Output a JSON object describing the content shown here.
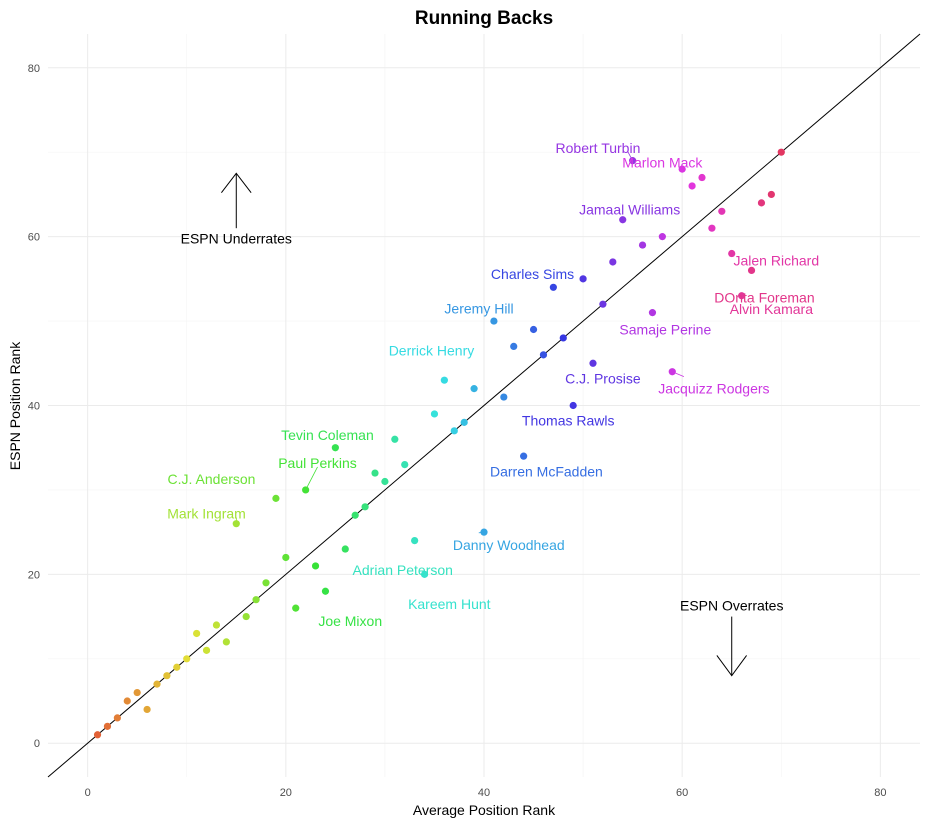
{
  "chart_data": {
    "type": "scatter",
    "title": "Running Backs",
    "xlabel": "Average Position Rank",
    "ylabel": "ESPN Position Rank",
    "xlim": [
      -4,
      84
    ],
    "ylim": [
      -4,
      84
    ],
    "x_ticks": [
      0,
      20,
      40,
      60,
      80
    ],
    "y_ticks": [
      0,
      20,
      40,
      60,
      80
    ],
    "grid": true,
    "legend": "none",
    "reference_line": {
      "slope": 1,
      "intercept": 0
    },
    "color_scale": {
      "by": "x",
      "start_hue": 15,
      "end_hue": 345
    },
    "points": [
      {
        "x": 1,
        "y": 1
      },
      {
        "x": 2,
        "y": 2
      },
      {
        "x": 3,
        "y": 3
      },
      {
        "x": 4,
        "y": 5
      },
      {
        "x": 5,
        "y": 6
      },
      {
        "x": 6,
        "y": 4
      },
      {
        "x": 7,
        "y": 7
      },
      {
        "x": 8,
        "y": 8
      },
      {
        "x": 9,
        "y": 9
      },
      {
        "x": 10,
        "y": 10
      },
      {
        "x": 11,
        "y": 13
      },
      {
        "x": 12,
        "y": 11
      },
      {
        "x": 13,
        "y": 14
      },
      {
        "x": 14,
        "y": 12
      },
      {
        "x": 15,
        "y": 26,
        "label": "Mark Ingram"
      },
      {
        "x": 16,
        "y": 15
      },
      {
        "x": 17,
        "y": 17
      },
      {
        "x": 18,
        "y": 19
      },
      {
        "x": 19,
        "y": 29,
        "label": "C.J. Anderson"
      },
      {
        "x": 20,
        "y": 22
      },
      {
        "x": 21,
        "y": 16
      },
      {
        "x": 22,
        "y": 30,
        "label": "Paul Perkins"
      },
      {
        "x": 23,
        "y": 21
      },
      {
        "x": 24,
        "y": 18,
        "label": "Joe Mixon"
      },
      {
        "x": 25,
        "y": 35,
        "label": "Tevin Coleman"
      },
      {
        "x": 26,
        "y": 23
      },
      {
        "x": 27,
        "y": 27
      },
      {
        "x": 28,
        "y": 28
      },
      {
        "x": 29,
        "y": 32
      },
      {
        "x": 30,
        "y": 31
      },
      {
        "x": 31,
        "y": 36
      },
      {
        "x": 32,
        "y": 33
      },
      {
        "x": 33,
        "y": 24,
        "label": "Adrian Peterson"
      },
      {
        "x": 34,
        "y": 20,
        "label": "Kareem Hunt"
      },
      {
        "x": 35,
        "y": 39
      },
      {
        "x": 36,
        "y": 43,
        "label": "Derrick Henry"
      },
      {
        "x": 37,
        "y": 37
      },
      {
        "x": 38,
        "y": 38
      },
      {
        "x": 39,
        "y": 42
      },
      {
        "x": 40,
        "y": 25,
        "label": "Danny Woodhead"
      },
      {
        "x": 41,
        "y": 50,
        "label": "Jeremy Hill"
      },
      {
        "x": 42,
        "y": 41
      },
      {
        "x": 43,
        "y": 47
      },
      {
        "x": 44,
        "y": 34,
        "label": "Darren McFadden"
      },
      {
        "x": 45,
        "y": 49
      },
      {
        "x": 46,
        "y": 46
      },
      {
        "x": 47,
        "y": 54,
        "label": "Charles Sims"
      },
      {
        "x": 48,
        "y": 48
      },
      {
        "x": 49,
        "y": 40,
        "label": "Thomas Rawls"
      },
      {
        "x": 50,
        "y": 55
      },
      {
        "x": 51,
        "y": 45,
        "label": "C.J. Prosise"
      },
      {
        "x": 52,
        "y": 52
      },
      {
        "x": 53,
        "y": 57
      },
      {
        "x": 54,
        "y": 62,
        "label": "Jamaal Williams"
      },
      {
        "x": 55,
        "y": 69,
        "label": "Robert Turbin"
      },
      {
        "x": 56,
        "y": 59
      },
      {
        "x": 57,
        "y": 51,
        "label": "Samaje Perine"
      },
      {
        "x": 58,
        "y": 60
      },
      {
        "x": 59,
        "y": 44,
        "label": "Jacquizz Rodgers"
      },
      {
        "x": 60,
        "y": 68,
        "label": "Marlon Mack"
      },
      {
        "x": 61,
        "y": 66
      },
      {
        "x": 62,
        "y": 67
      },
      {
        "x": 63,
        "y": 61
      },
      {
        "x": 64,
        "y": 63
      },
      {
        "x": 65,
        "y": 58,
        "label": "Jalen Richard"
      },
      {
        "x": 66,
        "y": 53,
        "label": "Alvin Kamara"
      },
      {
        "x": 67,
        "y": 56,
        "label": "DOnta Foreman"
      },
      {
        "x": 68,
        "y": 64
      },
      {
        "x": 69,
        "y": 65
      },
      {
        "x": 70,
        "y": 70
      }
    ],
    "annotations": [
      {
        "text": "ESPN Underrates",
        "arrow": "up"
      },
      {
        "text": "ESPN Overrates",
        "arrow": "down"
      }
    ]
  }
}
